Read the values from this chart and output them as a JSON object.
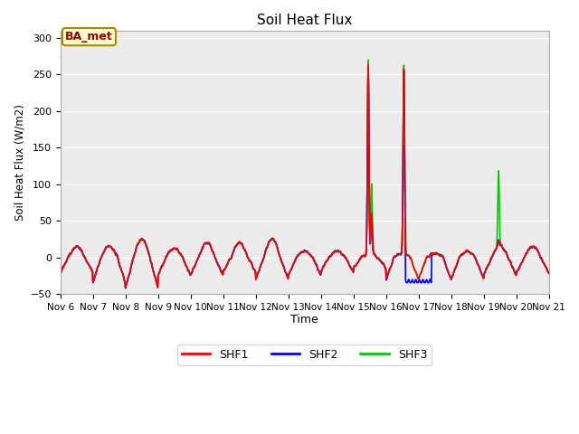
{
  "title": "Soil Heat Flux",
  "ylabel": "Soil Heat Flux (W/m2)",
  "xlabel": "Time",
  "ylim": [
    -50,
    310
  ],
  "yticks": [
    -50,
    0,
    50,
    100,
    150,
    200,
    250,
    300
  ],
  "xtick_labels": [
    "Nov 6",
    "Nov 7",
    "Nov 8",
    "Nov 9",
    "Nov 10",
    "Nov 11",
    "Nov 12",
    "Nov 13",
    "Nov 14",
    "Nov 15",
    "Nov 16",
    "Nov 17",
    "Nov 18",
    "Nov 19",
    "Nov 20",
    "Nov 21"
  ],
  "legend_labels": [
    "SHF1",
    "SHF2",
    "SHF3"
  ],
  "legend_colors": [
    "#ff0000",
    "#0000ff",
    "#00cc00"
  ],
  "plot_bg_color": "#ebebeb",
  "fig_bg_color": "#ffffff",
  "annotation_text": "BA_met",
  "annotation_color": "#990000",
  "annotation_bg": "#ffffcc",
  "annotation_border": "#aa8800",
  "grid_color": "#ffffff",
  "line_width": 1.2
}
